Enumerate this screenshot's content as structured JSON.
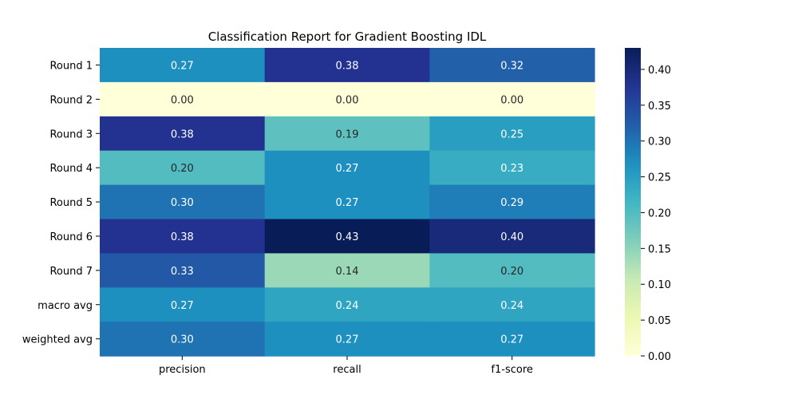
{
  "chart_data": {
    "type": "heatmap",
    "title": "Classification Report for Gradient Boosting IDL",
    "columns": [
      "precision",
      "recall",
      "f1-score"
    ],
    "rows": [
      "Round 1",
      "Round 2",
      "Round 3",
      "Round 4",
      "Round 5",
      "Round 6",
      "Round 7",
      "macro avg",
      "weighted avg"
    ],
    "values": [
      [
        0.27,
        0.38,
        0.32
      ],
      [
        0.0,
        0.0,
        0.0
      ],
      [
        0.38,
        0.19,
        0.25
      ],
      [
        0.2,
        0.27,
        0.23
      ],
      [
        0.3,
        0.27,
        0.29
      ],
      [
        0.38,
        0.43,
        0.4
      ],
      [
        0.33,
        0.14,
        0.2
      ],
      [
        0.27,
        0.24,
        0.24
      ],
      [
        0.3,
        0.27,
        0.27
      ]
    ],
    "value_labels": [
      [
        "0.27",
        "0.38",
        "0.32"
      ],
      [
        "0.00",
        "0.00",
        "0.00"
      ],
      [
        "0.38",
        "0.19",
        "0.25"
      ],
      [
        "0.20",
        "0.27",
        "0.23"
      ],
      [
        "0.30",
        "0.27",
        "0.29"
      ],
      [
        "0.38",
        "0.43",
        "0.40"
      ],
      [
        "0.33",
        "0.14",
        "0.20"
      ],
      [
        "0.27",
        "0.24",
        "0.24"
      ],
      [
        "0.30",
        "0.27",
        "0.27"
      ]
    ],
    "colormap": "YlGnBu",
    "vmin": 0.0,
    "vmax": 0.43,
    "colorbar_ticks": [
      0.0,
      0.05,
      0.1,
      0.15,
      0.2,
      0.25,
      0.3,
      0.35,
      0.4
    ],
    "colorbar_tick_labels": [
      "0.00",
      "0.05",
      "0.10",
      "0.15",
      "0.20",
      "0.25",
      "0.30",
      "0.35",
      "0.40"
    ],
    "colorbar_placement": "right"
  }
}
